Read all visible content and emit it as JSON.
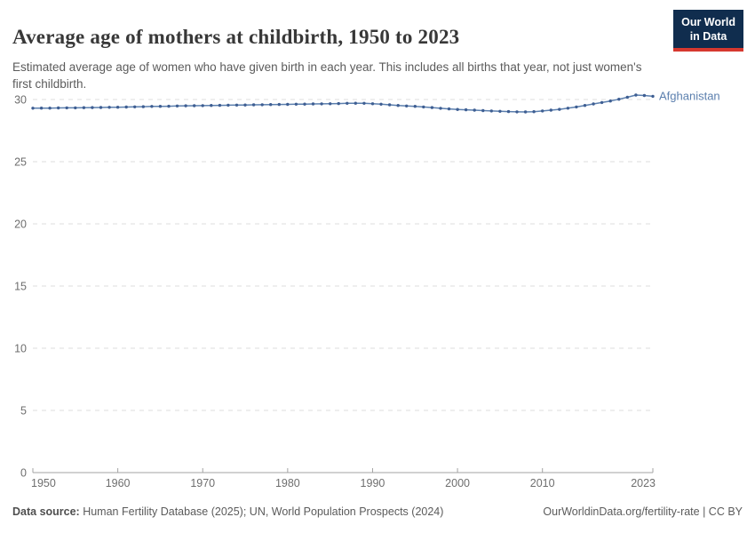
{
  "header": {
    "title": "Average age of mothers at childbirth, 1950 to 2023",
    "subtitle": "Estimated average age of women who have given birth in each year. This includes all births that year, not just women's first childbirth."
  },
  "logo": {
    "line1": "Our World",
    "line2": "in Data",
    "background": "#102d4e",
    "stripe_color": "#d6382f",
    "text_color": "#ffffff"
  },
  "chart_data": {
    "type": "line",
    "title": "Average age of mothers at childbirth, 1950 to 2023",
    "xlabel": "",
    "ylabel": "",
    "xlim": [
      1950,
      2023
    ],
    "ylim": [
      0,
      30.5
    ],
    "x_ticks": [
      1950,
      1960,
      1970,
      1980,
      1990,
      2000,
      2010,
      2023
    ],
    "y_ticks": [
      0,
      5,
      10,
      15,
      20,
      25,
      30
    ],
    "grid": "horizontal-dashed",
    "grid_color": "#dcdcdc",
    "axis_color": "#a3a3a3",
    "tick_label_color": "#6e6e6e",
    "legend_position": "end-of-line-label",
    "series": [
      {
        "name": "Afghanistan",
        "color": "#5b7fae",
        "dot_color": "#3e5e92",
        "x": [
          1950,
          1951,
          1952,
          1953,
          1954,
          1955,
          1956,
          1957,
          1958,
          1959,
          1960,
          1961,
          1962,
          1963,
          1964,
          1965,
          1966,
          1967,
          1968,
          1969,
          1970,
          1971,
          1972,
          1973,
          1974,
          1975,
          1976,
          1977,
          1978,
          1979,
          1980,
          1981,
          1982,
          1983,
          1984,
          1985,
          1986,
          1987,
          1988,
          1989,
          1990,
          1991,
          1992,
          1993,
          1994,
          1995,
          1996,
          1997,
          1998,
          1999,
          2000,
          2001,
          2002,
          2003,
          2004,
          2005,
          2006,
          2007,
          2008,
          2009,
          2010,
          2011,
          2012,
          2013,
          2014,
          2015,
          2016,
          2017,
          2018,
          2019,
          2020,
          2021,
          2022,
          2023
        ],
        "values": [
          29.3,
          29.31,
          29.31,
          29.32,
          29.33,
          29.33,
          29.34,
          29.35,
          29.36,
          29.37,
          29.38,
          29.39,
          29.41,
          29.42,
          29.44,
          29.45,
          29.46,
          29.48,
          29.49,
          29.5,
          29.51,
          29.52,
          29.53,
          29.54,
          29.55,
          29.56,
          29.57,
          29.58,
          29.59,
          29.6,
          29.61,
          29.62,
          29.63,
          29.64,
          29.65,
          29.66,
          29.67,
          29.69,
          29.7,
          29.69,
          29.66,
          29.62,
          29.57,
          29.52,
          29.48,
          29.45,
          29.4,
          29.35,
          29.29,
          29.24,
          29.2,
          29.17,
          29.14,
          29.11,
          29.08,
          29.05,
          29.03,
          29.01,
          29.0,
          29.02,
          29.08,
          29.14,
          29.21,
          29.3,
          29.4,
          29.52,
          29.64,
          29.76,
          29.88,
          30.02,
          30.18,
          30.36,
          30.32,
          30.26
        ]
      }
    ]
  },
  "footer": {
    "source_label": "Data source:",
    "source_text": " Human Fertility Database (2025); UN, World Population Prospects (2024)",
    "link_text": "OurWorldinData.org/fertility-rate | CC BY"
  }
}
